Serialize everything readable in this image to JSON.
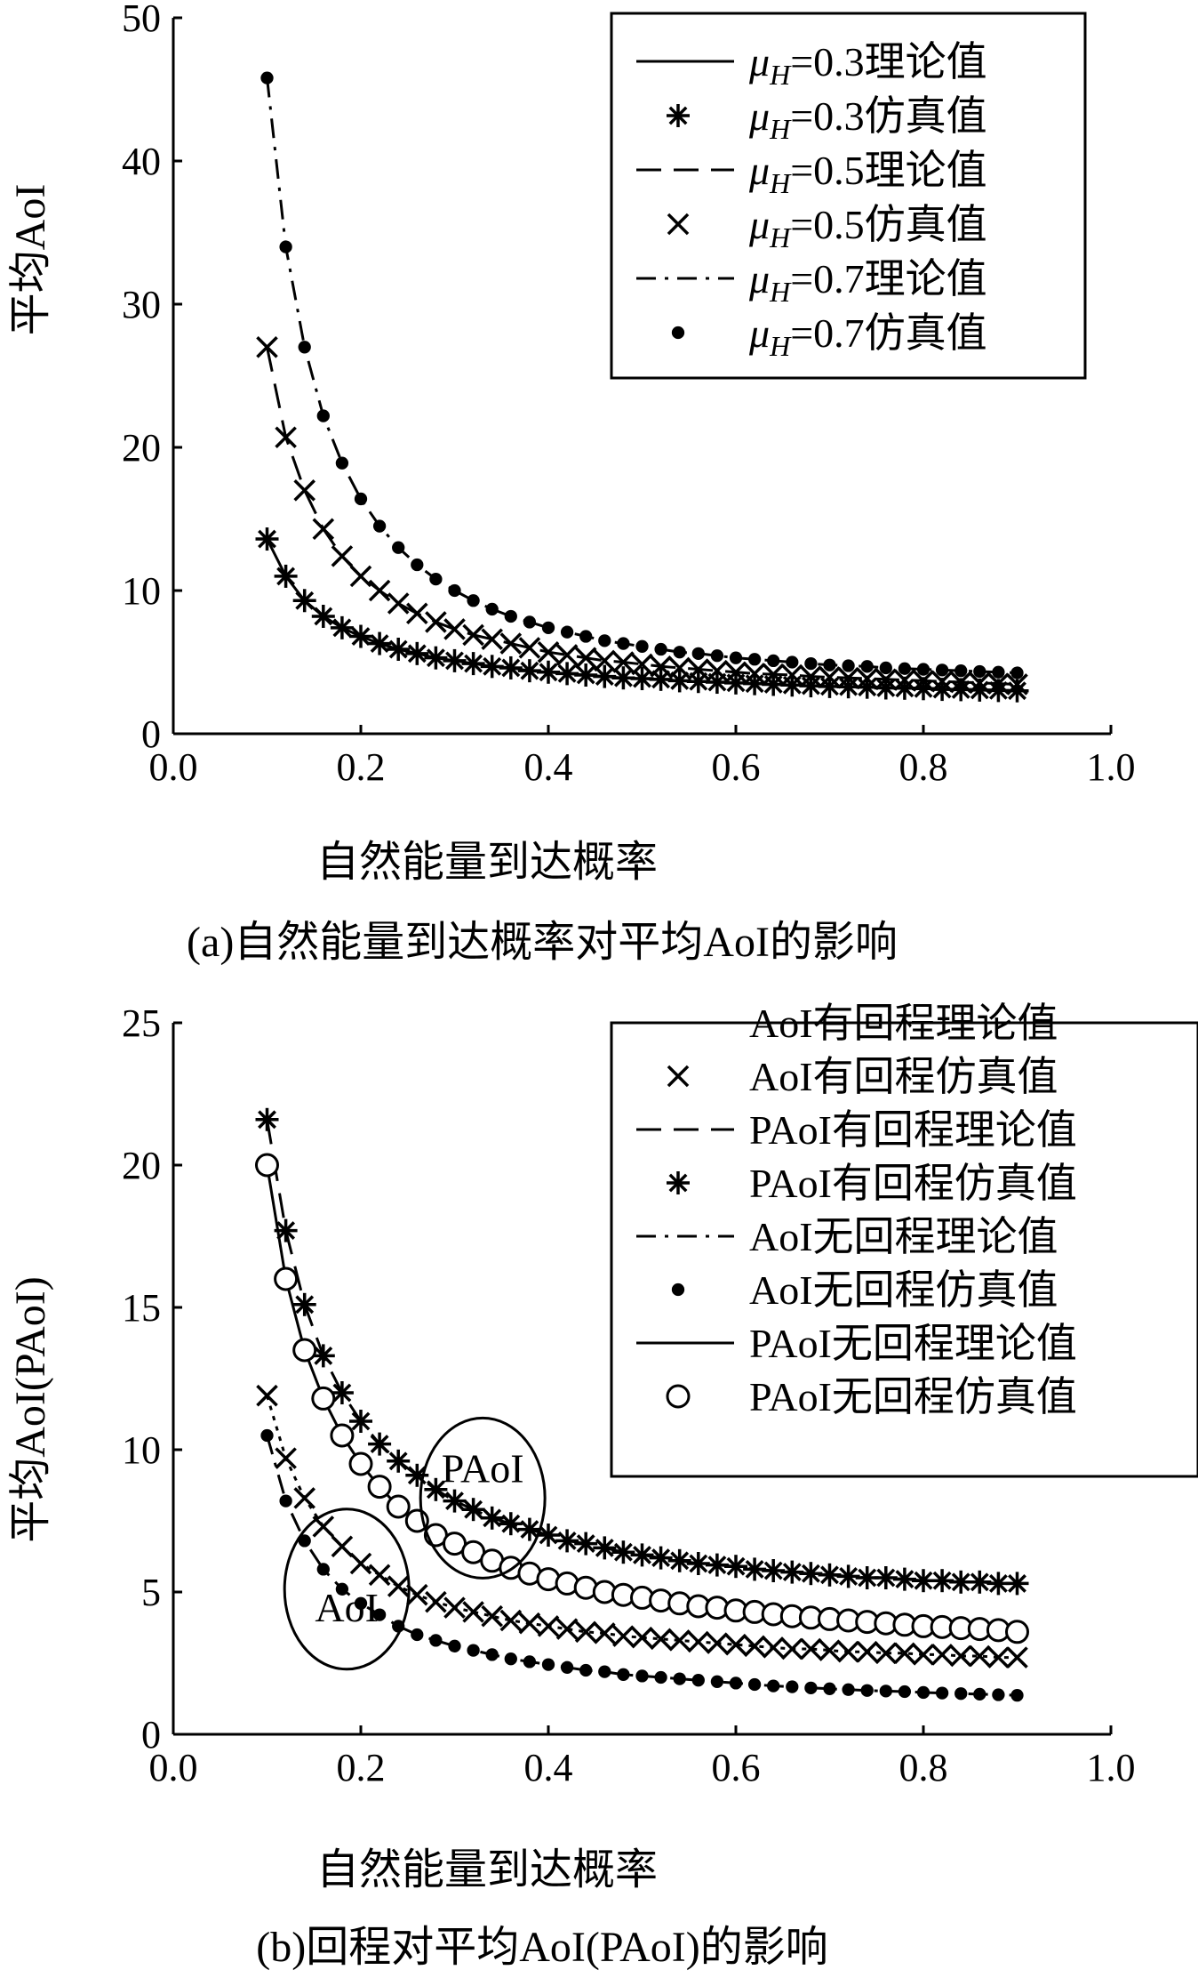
{
  "chart_data": [
    {
      "id": "a",
      "type": "line",
      "caption": "(a)自然能量到达概率对平均AoI的影响",
      "xlabel": "自然能量到达概率",
      "ylabel": "平均AoI",
      "xlim": [
        0.0,
        1.0
      ],
      "ylim": [
        0,
        50
      ],
      "xticks": [
        "0.0",
        "0.2",
        "0.4",
        "0.6",
        "0.8",
        "1.0"
      ],
      "yticks": [
        "0",
        "10",
        "20",
        "30",
        "40",
        "50"
      ],
      "grid": false,
      "legend_position": "top-right",
      "x": [
        0.1,
        0.12,
        0.14,
        0.16,
        0.18,
        0.2,
        0.22,
        0.24,
        0.26,
        0.28,
        0.3,
        0.32,
        0.34,
        0.36,
        0.38,
        0.4,
        0.42,
        0.44,
        0.46,
        0.48,
        0.5,
        0.52,
        0.54,
        0.56,
        0.58,
        0.6,
        0.62,
        0.64,
        0.66,
        0.68,
        0.7,
        0.72,
        0.74,
        0.76,
        0.78,
        0.8,
        0.82,
        0.84,
        0.86,
        0.88,
        0.9
      ],
      "series": [
        {
          "name": "μH=0.3理论值",
          "mu": "0.3",
          "kind": "理论值",
          "style": "solid",
          "values": [
            13.6,
            11.0,
            9.3,
            8.2,
            7.4,
            6.8,
            6.3,
            5.9,
            5.6,
            5.3,
            5.1,
            4.9,
            4.7,
            4.6,
            4.4,
            4.3,
            4.2,
            4.1,
            4.0,
            3.9,
            3.85,
            3.8,
            3.7,
            3.65,
            3.6,
            3.55,
            3.5,
            3.45,
            3.4,
            3.35,
            3.3,
            3.28,
            3.25,
            3.2,
            3.18,
            3.15,
            3.1,
            3.08,
            3.05,
            3.02,
            3.0
          ]
        },
        {
          "name": "μH=0.3仿真值",
          "mu": "0.3",
          "kind": "仿真值",
          "marker": "asterisk",
          "values": [
            13.6,
            11.0,
            9.3,
            8.2,
            7.4,
            6.8,
            6.3,
            5.9,
            5.6,
            5.3,
            5.1,
            4.9,
            4.7,
            4.6,
            4.4,
            4.3,
            4.2,
            4.1,
            4.0,
            3.9,
            3.85,
            3.8,
            3.7,
            3.65,
            3.6,
            3.55,
            3.5,
            3.45,
            3.4,
            3.35,
            3.3,
            3.28,
            3.25,
            3.2,
            3.18,
            3.15,
            3.1,
            3.08,
            3.05,
            3.02,
            3.0
          ]
        },
        {
          "name": "μH=0.5理论值",
          "mu": "0.5",
          "kind": "理论值",
          "style": "dashed",
          "values": [
            27.0,
            20.7,
            17.0,
            14.3,
            12.4,
            11.0,
            10.0,
            9.1,
            8.4,
            7.8,
            7.3,
            6.9,
            6.6,
            6.3,
            6.0,
            5.7,
            5.5,
            5.3,
            5.1,
            5.0,
            4.85,
            4.7,
            4.6,
            4.5,
            4.4,
            4.3,
            4.2,
            4.15,
            4.1,
            4.0,
            3.95,
            3.9,
            3.85,
            3.8,
            3.75,
            3.7,
            3.65,
            3.6,
            3.55,
            3.5,
            3.45
          ]
        },
        {
          "name": "μH=0.5仿真值",
          "mu": "0.5",
          "kind": "仿真值",
          "marker": "cross",
          "values": [
            27.0,
            20.7,
            17.0,
            14.3,
            12.4,
            11.0,
            10.0,
            9.1,
            8.4,
            7.8,
            7.3,
            6.9,
            6.6,
            6.3,
            6.0,
            5.7,
            5.5,
            5.3,
            5.1,
            5.0,
            4.85,
            4.7,
            4.6,
            4.5,
            4.4,
            4.3,
            4.2,
            4.15,
            4.1,
            4.0,
            3.95,
            3.9,
            3.85,
            3.8,
            3.75,
            3.7,
            3.65,
            3.6,
            3.55,
            3.5,
            3.45
          ]
        },
        {
          "name": "μH=0.7理论值",
          "mu": "0.7",
          "kind": "理论值",
          "style": "dashdot",
          "values": [
            45.8,
            34.0,
            27.0,
            22.2,
            18.9,
            16.4,
            14.5,
            13.0,
            11.8,
            10.8,
            10.0,
            9.3,
            8.7,
            8.2,
            7.8,
            7.4,
            7.1,
            6.8,
            6.5,
            6.3,
            6.1,
            5.9,
            5.7,
            5.6,
            5.45,
            5.3,
            5.2,
            5.1,
            5.0,
            4.9,
            4.8,
            4.75,
            4.7,
            4.6,
            4.55,
            4.5,
            4.45,
            4.4,
            4.35,
            4.3,
            4.25
          ]
        },
        {
          "name": "μH=0.7仿真值",
          "mu": "0.7",
          "kind": "仿真值",
          "marker": "dot",
          "values": [
            45.8,
            34.0,
            27.0,
            22.2,
            18.9,
            16.4,
            14.5,
            13.0,
            11.8,
            10.8,
            10.0,
            9.3,
            8.7,
            8.2,
            7.8,
            7.4,
            7.1,
            6.8,
            6.5,
            6.3,
            6.1,
            5.9,
            5.7,
            5.6,
            5.45,
            5.3,
            5.2,
            5.1,
            5.0,
            4.9,
            4.8,
            4.75,
            4.7,
            4.6,
            4.55,
            4.5,
            4.45,
            4.4,
            4.35,
            4.3,
            4.25
          ]
        }
      ]
    },
    {
      "id": "b",
      "type": "line",
      "caption": "(b)回程对平均AoI(PAoI)的影响",
      "xlabel": "自然能量到达概率",
      "ylabel": "平均AoI(PAoI)",
      "xlim": [
        0.0,
        1.0
      ],
      "ylim": [
        0,
        25
      ],
      "xticks": [
        "0.0",
        "0.2",
        "0.4",
        "0.6",
        "0.8",
        "1.0"
      ],
      "yticks": [
        "0",
        "5",
        "10",
        "15",
        "20",
        "25"
      ],
      "grid": false,
      "legend_position": "top-right",
      "annotations": [
        {
          "text": "PAoI",
          "shape": "ellipse",
          "x": 0.33,
          "y": 8.3
        },
        {
          "text": "AoI",
          "shape": "ellipse",
          "x": 0.185,
          "y": 5.1
        }
      ],
      "x": [
        0.1,
        0.12,
        0.14,
        0.16,
        0.18,
        0.2,
        0.22,
        0.24,
        0.26,
        0.28,
        0.3,
        0.32,
        0.34,
        0.36,
        0.38,
        0.4,
        0.42,
        0.44,
        0.46,
        0.48,
        0.5,
        0.52,
        0.54,
        0.56,
        0.58,
        0.6,
        0.62,
        0.64,
        0.66,
        0.68,
        0.7,
        0.72,
        0.74,
        0.76,
        0.78,
        0.8,
        0.82,
        0.84,
        0.86,
        0.88,
        0.9
      ],
      "series": [
        {
          "name": "AoI有回程理论值",
          "kind": "理论值",
          "style": "dotted",
          "values": [
            11.9,
            9.7,
            8.3,
            7.3,
            6.6,
            6.0,
            5.6,
            5.2,
            4.9,
            4.65,
            4.45,
            4.3,
            4.15,
            4.0,
            3.9,
            3.8,
            3.7,
            3.6,
            3.55,
            3.45,
            3.4,
            3.35,
            3.3,
            3.25,
            3.2,
            3.15,
            3.1,
            3.05,
            3.0,
            3.0,
            2.95,
            2.9,
            2.9,
            2.85,
            2.85,
            2.8,
            2.8,
            2.75,
            2.75,
            2.7,
            2.7
          ]
        },
        {
          "name": "AoI有回程仿真值",
          "kind": "仿真值",
          "marker": "cross",
          "values": [
            11.9,
            9.7,
            8.3,
            7.3,
            6.6,
            6.0,
            5.6,
            5.2,
            4.9,
            4.65,
            4.45,
            4.3,
            4.15,
            4.0,
            3.9,
            3.8,
            3.7,
            3.6,
            3.55,
            3.45,
            3.4,
            3.35,
            3.3,
            3.25,
            3.2,
            3.15,
            3.1,
            3.05,
            3.0,
            3.0,
            2.95,
            2.9,
            2.9,
            2.85,
            2.85,
            2.8,
            2.8,
            2.75,
            2.75,
            2.7,
            2.7
          ]
        },
        {
          "name": "PAoI有回程理论值",
          "kind": "理论值",
          "style": "dashed",
          "values": [
            21.6,
            17.7,
            15.1,
            13.3,
            12.0,
            11.0,
            10.2,
            9.6,
            9.1,
            8.6,
            8.2,
            7.9,
            7.6,
            7.4,
            7.2,
            7.0,
            6.8,
            6.7,
            6.55,
            6.4,
            6.3,
            6.2,
            6.1,
            6.0,
            5.95,
            5.9,
            5.8,
            5.75,
            5.7,
            5.65,
            5.6,
            5.55,
            5.5,
            5.5,
            5.45,
            5.4,
            5.4,
            5.35,
            5.35,
            5.3,
            5.3
          ]
        },
        {
          "name": "PAoI有回程仿真值",
          "kind": "仿真值",
          "marker": "asterisk",
          "values": [
            21.6,
            17.7,
            15.1,
            13.3,
            12.0,
            11.0,
            10.2,
            9.6,
            9.1,
            8.6,
            8.2,
            7.9,
            7.6,
            7.4,
            7.2,
            7.0,
            6.8,
            6.7,
            6.55,
            6.4,
            6.3,
            6.2,
            6.1,
            6.0,
            5.95,
            5.9,
            5.8,
            5.75,
            5.7,
            5.65,
            5.6,
            5.55,
            5.5,
            5.5,
            5.45,
            5.4,
            5.4,
            5.35,
            5.35,
            5.3,
            5.3
          ]
        },
        {
          "name": "AoI无回程理论值",
          "kind": "理论值",
          "style": "dashdot",
          "values": [
            10.5,
            8.2,
            6.8,
            5.8,
            5.1,
            4.6,
            4.2,
            3.8,
            3.5,
            3.3,
            3.1,
            2.95,
            2.8,
            2.65,
            2.55,
            2.45,
            2.35,
            2.25,
            2.2,
            2.1,
            2.05,
            2.0,
            1.95,
            1.9,
            1.85,
            1.8,
            1.75,
            1.7,
            1.67,
            1.63,
            1.6,
            1.57,
            1.54,
            1.52,
            1.5,
            1.47,
            1.45,
            1.43,
            1.41,
            1.39,
            1.37
          ]
        },
        {
          "name": "AoI无回程仿真值",
          "kind": "仿真值",
          "marker": "dot",
          "values": [
            10.5,
            8.2,
            6.8,
            5.8,
            5.1,
            4.6,
            4.2,
            3.8,
            3.5,
            3.3,
            3.1,
            2.95,
            2.8,
            2.65,
            2.55,
            2.45,
            2.35,
            2.25,
            2.2,
            2.1,
            2.05,
            2.0,
            1.95,
            1.9,
            1.85,
            1.8,
            1.75,
            1.7,
            1.67,
            1.63,
            1.6,
            1.57,
            1.54,
            1.52,
            1.5,
            1.47,
            1.45,
            1.43,
            1.41,
            1.39,
            1.37
          ]
        },
        {
          "name": "PAoI无回程理论值",
          "kind": "理论值",
          "style": "solid",
          "values": [
            20.0,
            16.0,
            13.5,
            11.8,
            10.5,
            9.5,
            8.7,
            8.0,
            7.5,
            7.0,
            6.7,
            6.4,
            6.1,
            5.85,
            5.65,
            5.45,
            5.3,
            5.15,
            5.0,
            4.9,
            4.8,
            4.7,
            4.6,
            4.5,
            4.45,
            4.35,
            4.3,
            4.22,
            4.15,
            4.1,
            4.05,
            4.0,
            3.95,
            3.9,
            3.85,
            3.8,
            3.77,
            3.73,
            3.7,
            3.66,
            3.6
          ]
        },
        {
          "name": "PAoI无回程仿真值",
          "kind": "仿真值",
          "marker": "circle",
          "values": [
            20.0,
            16.0,
            13.5,
            11.8,
            10.5,
            9.5,
            8.7,
            8.0,
            7.5,
            7.0,
            6.7,
            6.4,
            6.1,
            5.85,
            5.65,
            5.45,
            5.3,
            5.15,
            5.0,
            4.9,
            4.8,
            4.7,
            4.6,
            4.5,
            4.45,
            4.35,
            4.3,
            4.22,
            4.15,
            4.1,
            4.05,
            4.0,
            3.95,
            3.9,
            3.85,
            3.8,
            3.77,
            3.73,
            3.7,
            3.66,
            3.6
          ]
        }
      ]
    }
  ]
}
